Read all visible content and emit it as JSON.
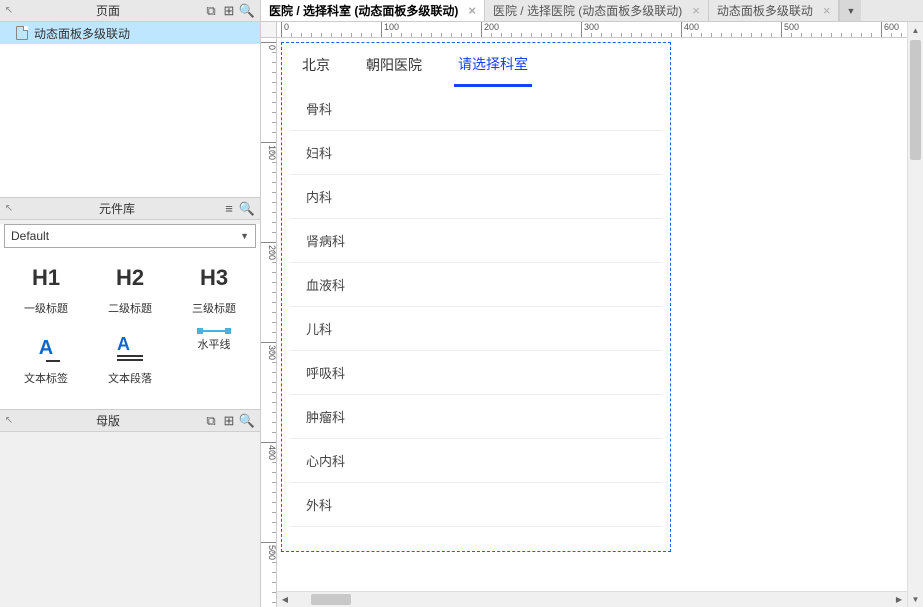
{
  "sidebar": {
    "pages": {
      "title": "页面",
      "item": "动态面板多级联动"
    },
    "library": {
      "title": "元件库",
      "dropdown": "Default",
      "widgets": [
        {
          "icon": "H1",
          "label": "一级标题"
        },
        {
          "icon": "H2",
          "label": "二级标题"
        },
        {
          "icon": "H3",
          "label": "三级标题"
        },
        {
          "icon": "txtlabel",
          "label": "文本标签"
        },
        {
          "icon": "para",
          "label": "文本段落"
        },
        {
          "icon": "hr",
          "label": "水平线"
        }
      ]
    },
    "masters": {
      "title": "母版"
    }
  },
  "tabs": [
    {
      "label": "医院 / 选择科室 (动态面板多级联动)",
      "active": true
    },
    {
      "label": "医院 / 选择医院 (动态面板多级联动)",
      "active": false
    },
    {
      "label": "动态面板多级联动",
      "active": false
    }
  ],
  "ruler": {
    "h_ticks": [
      0,
      100,
      200,
      300,
      400,
      500,
      600
    ],
    "v_ticks": [
      0,
      100,
      200,
      300,
      400,
      500
    ]
  },
  "prototype": {
    "tabs": [
      "北京",
      "朝阳医院",
      "请选择科室"
    ],
    "selected_tab": 2,
    "items": [
      "骨科",
      "妇科",
      "内科",
      "肾病科",
      "血液科",
      "儿科",
      "呼吸科",
      "肿瘤科",
      "心内科",
      "外科"
    ]
  }
}
